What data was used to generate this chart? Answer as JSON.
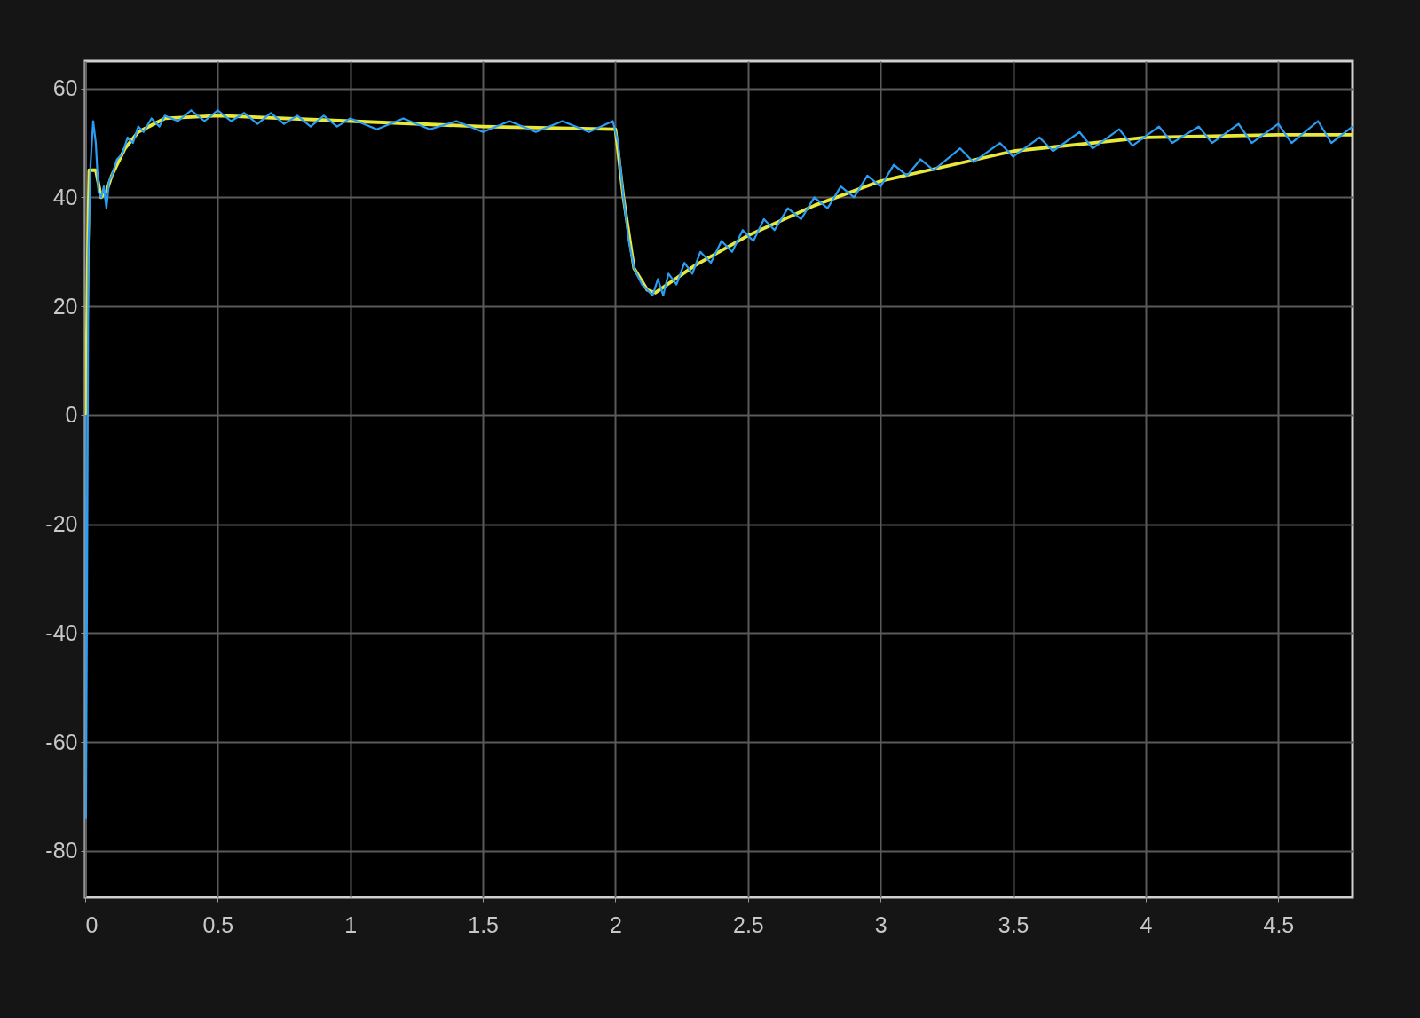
{
  "chart_data": {
    "type": "line",
    "xlim": [
      0,
      4.78
    ],
    "ylim": [
      -88.5,
      65
    ],
    "xticks": [
      0,
      0.5,
      1,
      1.5,
      2,
      2.5,
      3,
      3.5,
      4,
      4.5
    ],
    "yticks": [
      -80,
      -60,
      -40,
      -20,
      0,
      20,
      40,
      60
    ],
    "grid": true,
    "line_style": "solid",
    "series": [
      {
        "color": "#e8e83a",
        "x": [
          0,
          0.005,
          0.01,
          0.015,
          0.04,
          0.06,
          0.08,
          0.1,
          0.15,
          0.2,
          0.3,
          0.5,
          1.0,
          1.5,
          2.0,
          2.03,
          2.07,
          2.12,
          2.15,
          2.3,
          2.5,
          2.75,
          3.0,
          3.5,
          4.0,
          4.5,
          4.78
        ],
        "values": [
          0,
          8,
          30,
          45,
          45,
          40,
          41,
          44,
          49,
          52,
          54.5,
          55,
          54,
          53,
          52.5,
          40,
          27,
          23,
          22.5,
          27.5,
          33,
          38.5,
          43,
          48.5,
          51,
          51.5,
          51.5
        ]
      },
      {
        "color": "#2a9df4",
        "x": [
          0,
          0.003,
          0.008,
          0.012,
          0.02,
          0.03,
          0.04,
          0.05,
          0.06,
          0.07,
          0.08,
          0.09,
          0.1,
          0.12,
          0.14,
          0.16,
          0.18,
          0.2,
          0.22,
          0.25,
          0.28,
          0.3,
          0.35,
          0.4,
          0.45,
          0.5,
          0.55,
          0.6,
          0.65,
          0.7,
          0.75,
          0.8,
          0.85,
          0.9,
          0.95,
          1.0,
          1.1,
          1.2,
          1.3,
          1.4,
          1.5,
          1.6,
          1.7,
          1.8,
          1.9,
          1.99,
          2.01,
          2.03,
          2.05,
          2.07,
          2.1,
          2.12,
          2.14,
          2.16,
          2.18,
          2.2,
          2.23,
          2.26,
          2.29,
          2.32,
          2.36,
          2.4,
          2.44,
          2.48,
          2.52,
          2.56,
          2.6,
          2.65,
          2.7,
          2.75,
          2.8,
          2.85,
          2.9,
          2.95,
          3.0,
          3.05,
          3.1,
          3.15,
          3.2,
          3.3,
          3.35,
          3.45,
          3.5,
          3.6,
          3.65,
          3.75,
          3.8,
          3.9,
          3.95,
          4.05,
          4.1,
          4.2,
          4.25,
          4.35,
          4.4,
          4.5,
          4.55,
          4.65,
          4.7,
          4.78
        ],
        "values": [
          0,
          -74,
          -20,
          30,
          46,
          54,
          50,
          41,
          40,
          42,
          38,
          43,
          44,
          47,
          48,
          51,
          50,
          53,
          52,
          54.5,
          53,
          55,
          54,
          56,
          54,
          56,
          54,
          55.5,
          53.5,
          55.5,
          53.5,
          55,
          53,
          55,
          53,
          54.5,
          52.5,
          54.5,
          52.5,
          54,
          52,
          54,
          52,
          54,
          52,
          54,
          50,
          40,
          32,
          27,
          24,
          23,
          22,
          25,
          22,
          26,
          24,
          28,
          26,
          30,
          28,
          32,
          30,
          34,
          32,
          36,
          34,
          38,
          36,
          40,
          38,
          42,
          40,
          44,
          42,
          46,
          44,
          47,
          45,
          49,
          46.5,
          50,
          47.5,
          51,
          48.5,
          52,
          49,
          52.5,
          49.5,
          53,
          50,
          53,
          50,
          53.5,
          50,
          53.5,
          50,
          54,
          50,
          53
        ]
      }
    ]
  }
}
